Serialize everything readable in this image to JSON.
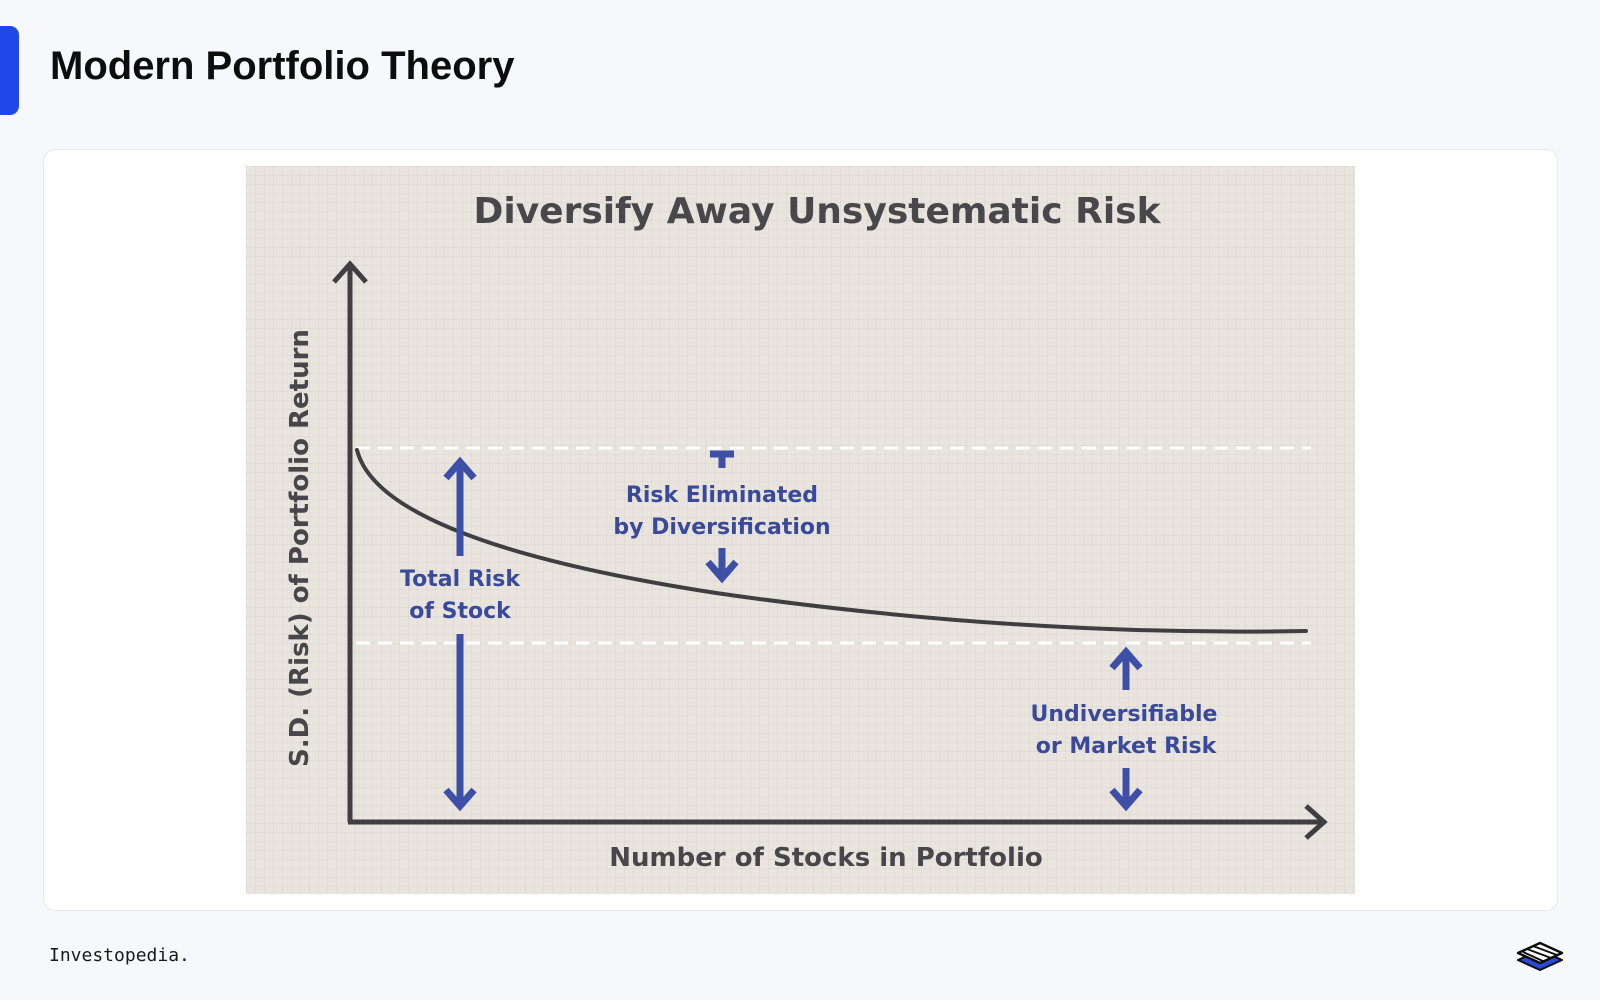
{
  "header": {
    "title": "Modern Portfolio Theory"
  },
  "figure": {
    "title": "Diversify Away Unsystematic Risk",
    "y_axis_label": "S.D. (Risk) of Portfolio Return",
    "x_axis_label": "Number of Stocks in Portfolio",
    "annotations": {
      "risk_eliminated_line1": "Risk Eliminated",
      "risk_eliminated_line2": "by Diversification",
      "total_risk_line1": "Total Risk",
      "total_risk_line2": "of Stock",
      "market_risk_line1": "Undiversifiable",
      "market_risk_line2": "or Market Risk"
    },
    "colors": {
      "annotation": "#3d4fa6",
      "axis": "#3f3e42",
      "dashed_lines": "#ffffff"
    }
  },
  "footer": {
    "source": "Investopedia.",
    "logo_icon": "layered-diamonds-logo"
  }
}
